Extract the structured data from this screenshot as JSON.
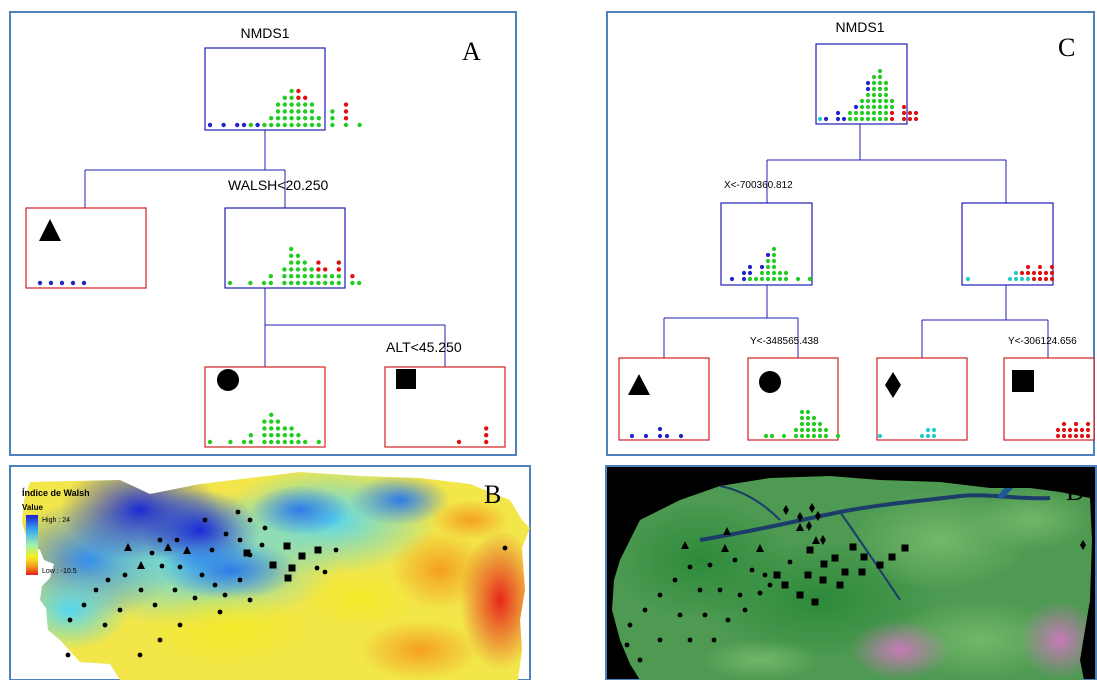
{
  "colors": {
    "frame": "#4f81bd",
    "edge": "#1f1fb4",
    "node_inner": "#1f1fb4",
    "node_leaf": "#d02020",
    "dot_blue": "#2222cc",
    "dot_green": "#22cc22",
    "dot_red": "#dd1111",
    "dot_cyan": "#22cccc"
  },
  "panel_a": {
    "letter": "A",
    "root_label": "NMDS1",
    "split1_label": "WALSH<20.250",
    "split2_label": "ALT<45.250",
    "leaf_icons": [
      "triangle-icon",
      "circle-icon",
      "square-icon"
    ]
  },
  "panel_b": {
    "letter": "B",
    "legend_title": "Índice de Walsh",
    "legend_subtitle": "Value",
    "legend_high": "High : 24",
    "legend_low": "Low : -10.5",
    "icons": [
      "triangle-icon",
      "circle-icon",
      "square-icon"
    ]
  },
  "panel_c": {
    "letter": "C",
    "root_label": "NMDS1",
    "split_left_label": "X<-700360.812",
    "split_ll_label": "Y<-348565.438",
    "split_rr_label": "Y<-306124.656",
    "leaf_icons": [
      "triangle-icon",
      "circle-icon",
      "diamond-icon",
      "square-icon"
    ]
  },
  "panel_d": {
    "letter": "D",
    "icons": [
      "triangle-icon",
      "circle-icon",
      "diamond-icon",
      "square-icon"
    ]
  }
}
